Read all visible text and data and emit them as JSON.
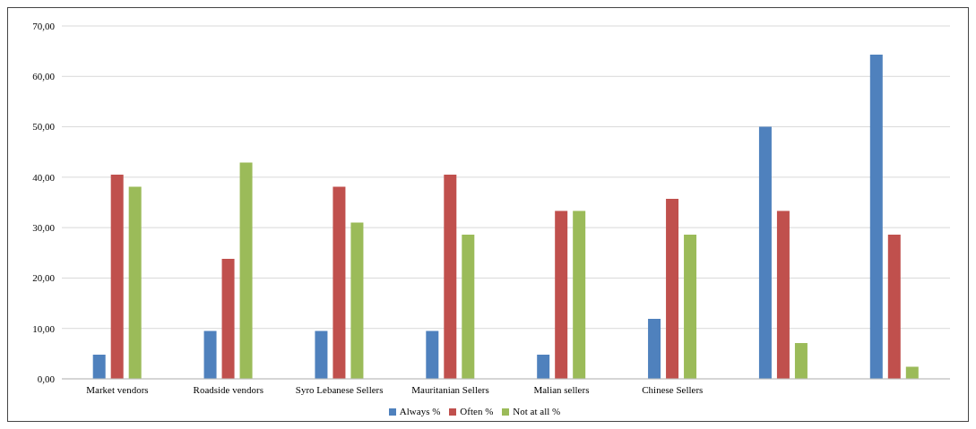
{
  "chart_data": {
    "type": "bar",
    "categories": [
      "Market vendors",
      "Roadside vendors",
      "Syro Lebanese Sellers",
      "Mauritanian Sellers",
      "Malian sellers",
      "Chinese Sellers",
      null,
      null
    ],
    "series": [
      {
        "name": "Always %",
        "color": "#4f81bd",
        "values": [
          4.8,
          9.5,
          9.5,
          9.5,
          4.8,
          11.9,
          50.0,
          64.3
        ]
      },
      {
        "name": "Often %",
        "color": "#c0504d",
        "values": [
          40.5,
          23.8,
          38.1,
          40.5,
          33.3,
          35.7,
          33.3,
          28.6
        ]
      },
      {
        "name": "Not at all %",
        "color": "#9bbb59",
        "values": [
          38.1,
          42.9,
          31.0,
          28.6,
          33.3,
          28.6,
          7.1,
          2.4
        ]
      }
    ],
    "ylim": [
      0,
      70
    ],
    "yticks": [
      {
        "value": 0,
        "label": "0,00"
      },
      {
        "value": 10,
        "label": "10,00"
      },
      {
        "value": 20,
        "label": "20,00"
      },
      {
        "value": 30,
        "label": "30,00"
      },
      {
        "value": 40,
        "label": "40,00"
      },
      {
        "value": 50,
        "label": "50,00"
      },
      {
        "value": 60,
        "label": "60,00"
      },
      {
        "value": 70,
        "label": "70,00"
      }
    ],
    "grid": "y",
    "legend": "bottom"
  }
}
